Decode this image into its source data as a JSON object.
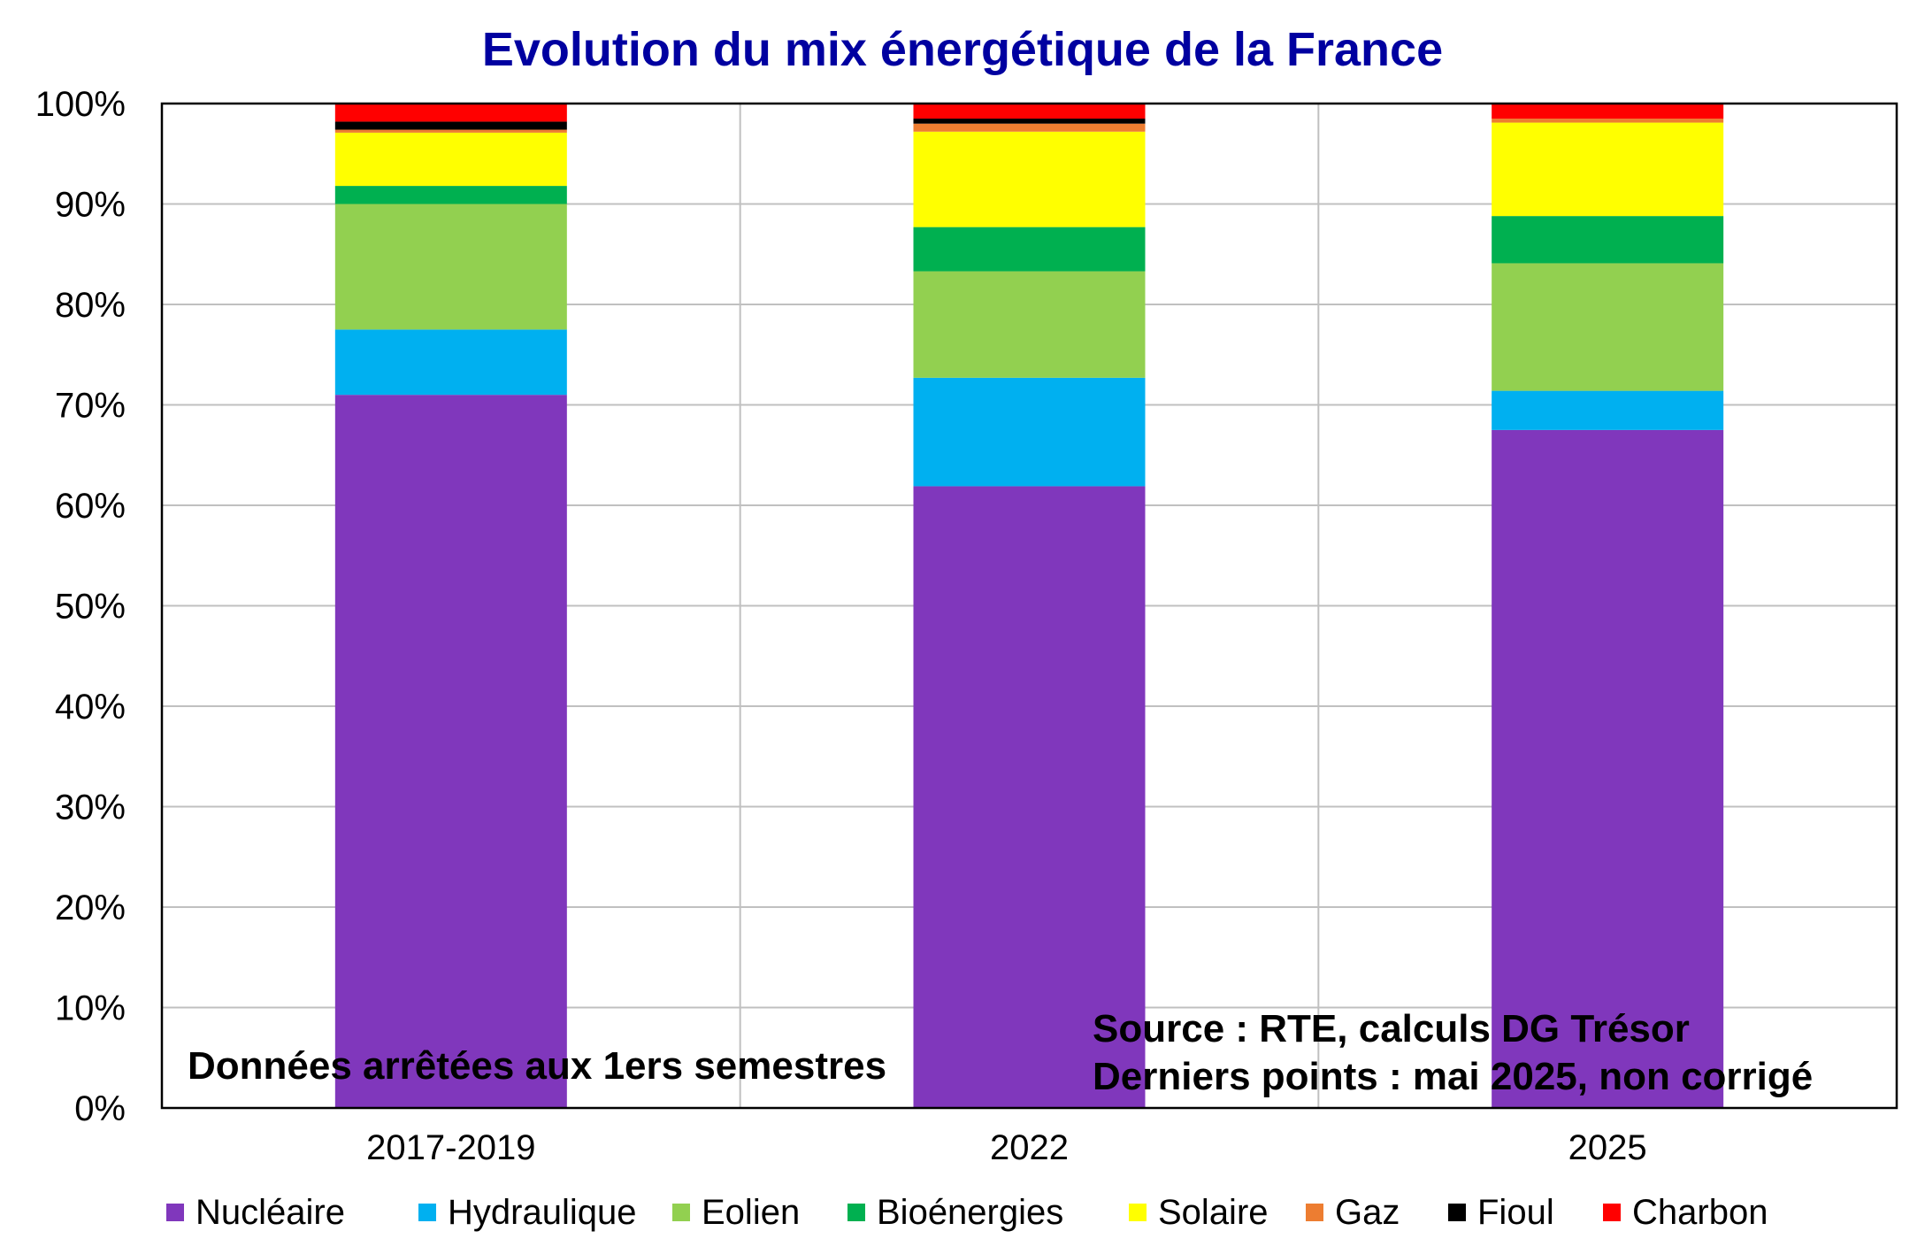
{
  "chart_data": {
    "type": "bar",
    "stacked": true,
    "title": "Evolution du mix énergétique de la France",
    "xlabel": "",
    "ylabel": "",
    "ylim": [
      0,
      100
    ],
    "y_ticks": [
      "0%",
      "10%",
      "20%",
      "30%",
      "40%",
      "50%",
      "60%",
      "70%",
      "80%",
      "90%",
      "100%"
    ],
    "y_tick_values": [
      0,
      10,
      20,
      30,
      40,
      50,
      60,
      70,
      80,
      90,
      100
    ],
    "grid": true,
    "legend_position": "bottom",
    "categories": [
      "2017-2019",
      "2022",
      "2025"
    ],
    "series": [
      {
        "name": "Nucléaire",
        "color": "#8037bc",
        "values": [
          71.0,
          61.9,
          67.5
        ]
      },
      {
        "name": "Hydraulique",
        "color": "#00b0f0",
        "values": [
          6.5,
          10.8,
          3.9
        ]
      },
      {
        "name": "Eolien",
        "color": "#92d050",
        "values": [
          12.5,
          10.6,
          12.7
        ]
      },
      {
        "name": "Bioénergies",
        "color": "#00b050",
        "values": [
          1.8,
          4.4,
          4.7
        ]
      },
      {
        "name": "Solaire",
        "color": "#ffff00",
        "values": [
          5.3,
          9.5,
          9.3
        ]
      },
      {
        "name": "Gaz",
        "color": "#ed7d31",
        "values": [
          0.3,
          0.8,
          0.4
        ]
      },
      {
        "name": "Fioul",
        "color": "#000000",
        "values": [
          0.8,
          0.5,
          0.0
        ]
      },
      {
        "name": "Charbon",
        "color": "#ff0000",
        "values": [
          1.8,
          1.5,
          1.5
        ]
      }
    ],
    "annotations": [
      "Données arrêtées aux 1ers semestres",
      "Source : RTE, calculs DG Trésor",
      "Derniers points : mai 2025, non corrigé"
    ]
  }
}
